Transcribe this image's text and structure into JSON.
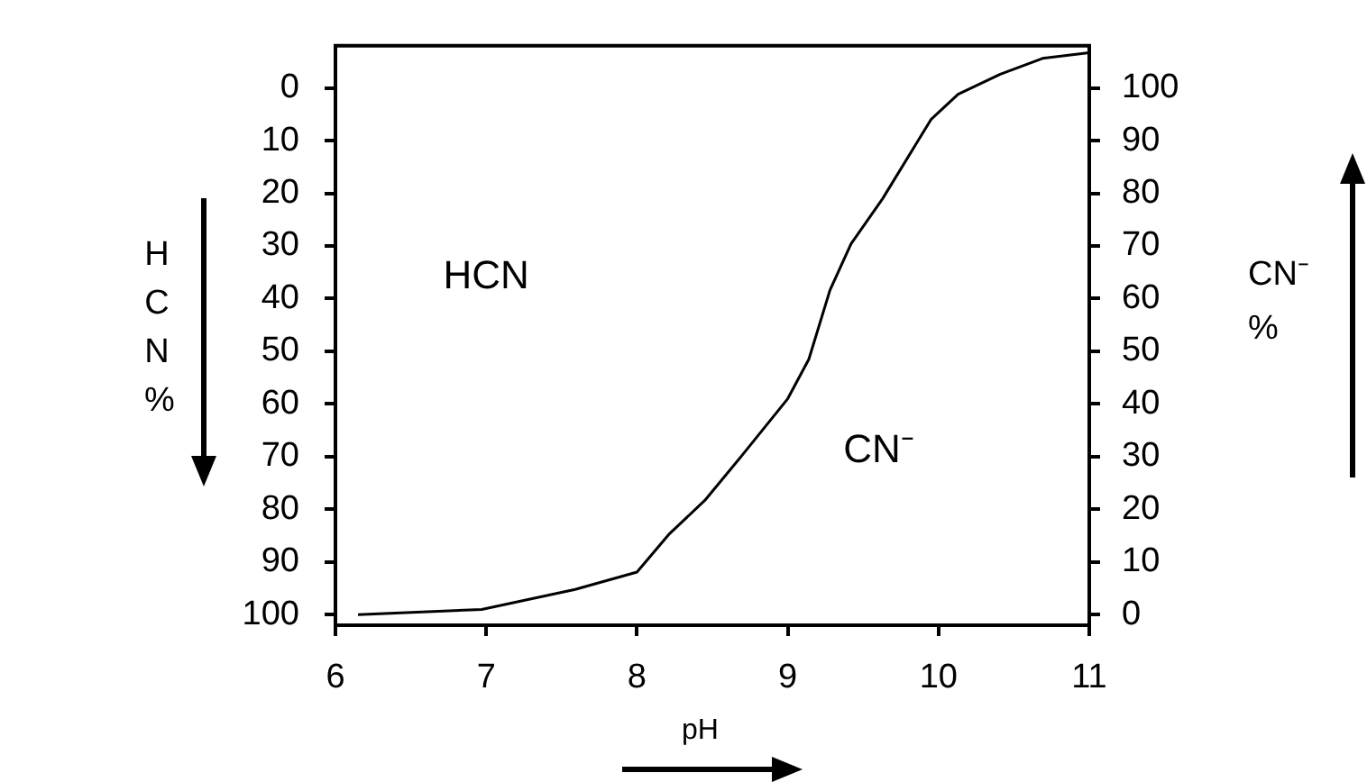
{
  "chart_data": {
    "type": "line",
    "x": [
      6.15,
      6.97,
      7.59,
      8.0,
      8.21,
      8.45,
      8.69,
      9.0,
      9.14,
      9.28,
      9.42,
      9.63,
      9.95,
      10.13,
      10.41,
      10.69,
      11.0
    ],
    "series": [
      {
        "color": "#000000",
        "axis": "y2",
        "values": [
          0,
          1,
          4.8,
          8.1,
          15.2,
          21.7,
          30,
          41,
          48.5,
          61.6,
          70.4,
          79,
          94,
          98.8,
          102.6,
          105.6,
          106.7
        ]
      }
    ],
    "xlabel": "pH",
    "ylabel": "HCN %",
    "y2label": "CN⁻ %",
    "xlim": [
      6,
      11
    ],
    "xticks": [
      6,
      7,
      8,
      9,
      10,
      11
    ],
    "ylim": [
      102,
      -8
    ],
    "yticks": [
      0,
      10,
      20,
      30,
      40,
      50,
      60,
      70,
      80,
      90,
      100
    ],
    "y2lim": [
      -2,
      108
    ],
    "y2ticks": [
      0,
      10,
      20,
      30,
      40,
      50,
      60,
      70,
      80,
      90,
      100
    ],
    "annotations": [
      "HCN",
      "CN⁻"
    ],
    "grid": false,
    "legend": false,
    "marker": "none",
    "line_style": "solid"
  }
}
